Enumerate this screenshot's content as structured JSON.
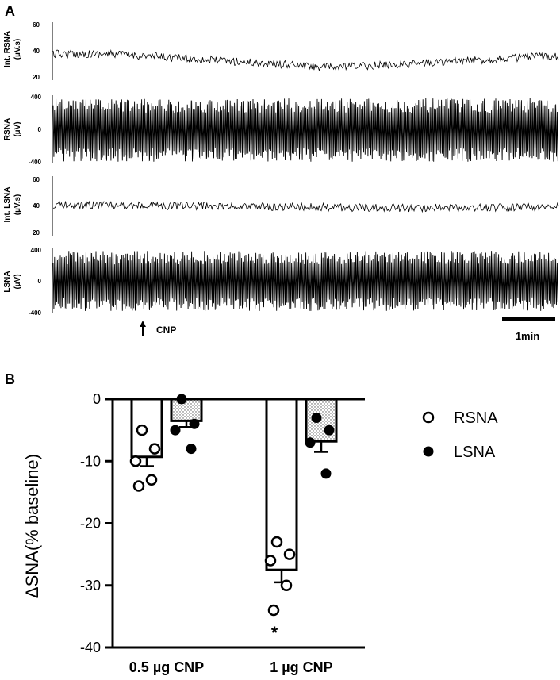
{
  "panel_a": {
    "letter": "A",
    "traces": [
      {
        "key": "int_rsna",
        "label_line1": "Int. RSNA",
        "label_line2": "(µV.s)",
        "ticks": [
          "60",
          "40",
          "20"
        ],
        "kind": "integrated"
      },
      {
        "key": "rsna",
        "label_line1": "RSNA",
        "label_line2": "(µV)",
        "ticks": [
          "400",
          "0",
          "-400"
        ],
        "kind": "raw"
      },
      {
        "key": "int_lsna",
        "label_line1": "Int. LSNA",
        "label_line2": "(µV.s)",
        "ticks": [
          "60",
          "40",
          "20"
        ],
        "kind": "integrated"
      },
      {
        "key": "lsna",
        "label_line1": "LSNA",
        "label_line2": "(µV)",
        "ticks": [
          "400",
          "0",
          "-400"
        ],
        "kind": "raw"
      }
    ],
    "marker_label": "CNP",
    "scale_bar_label": "1min"
  },
  "chart_data": {
    "type": "bar",
    "panel_letter": "B",
    "title": "",
    "xlabel": "",
    "ylabel": "ΔSNA(% baseline)",
    "ylim": [
      -40,
      0
    ],
    "yticks": [
      0,
      -10,
      -20,
      -30,
      -40
    ],
    "categories": [
      "0.5 µg CNP",
      "1 µg CNP"
    ],
    "series": [
      {
        "name": "RSNA",
        "fill": "#ffffff",
        "marker": "open-circle",
        "values": [
          -9.3,
          -27.5
        ],
        "sem": [
          1.5,
          2.0
        ],
        "points": [
          [
            -5,
            -8,
            -10,
            -13,
            -14
          ],
          [
            -23,
            -25,
            -26,
            -30,
            -34
          ]
        ]
      },
      {
        "name": "LSNA",
        "fill": "dotted",
        "marker": "filled-circle",
        "values": [
          -3.5,
          -6.8
        ],
        "sem": [
          1.0,
          1.7
        ],
        "points": [
          [
            0,
            -4,
            -5,
            -8
          ],
          [
            -3,
            -5,
            -7,
            -12
          ]
        ]
      }
    ],
    "annotations": [
      {
        "text": "*",
        "category": "1 µg CNP",
        "series": "RSNA"
      }
    ],
    "legend_position": "right"
  }
}
